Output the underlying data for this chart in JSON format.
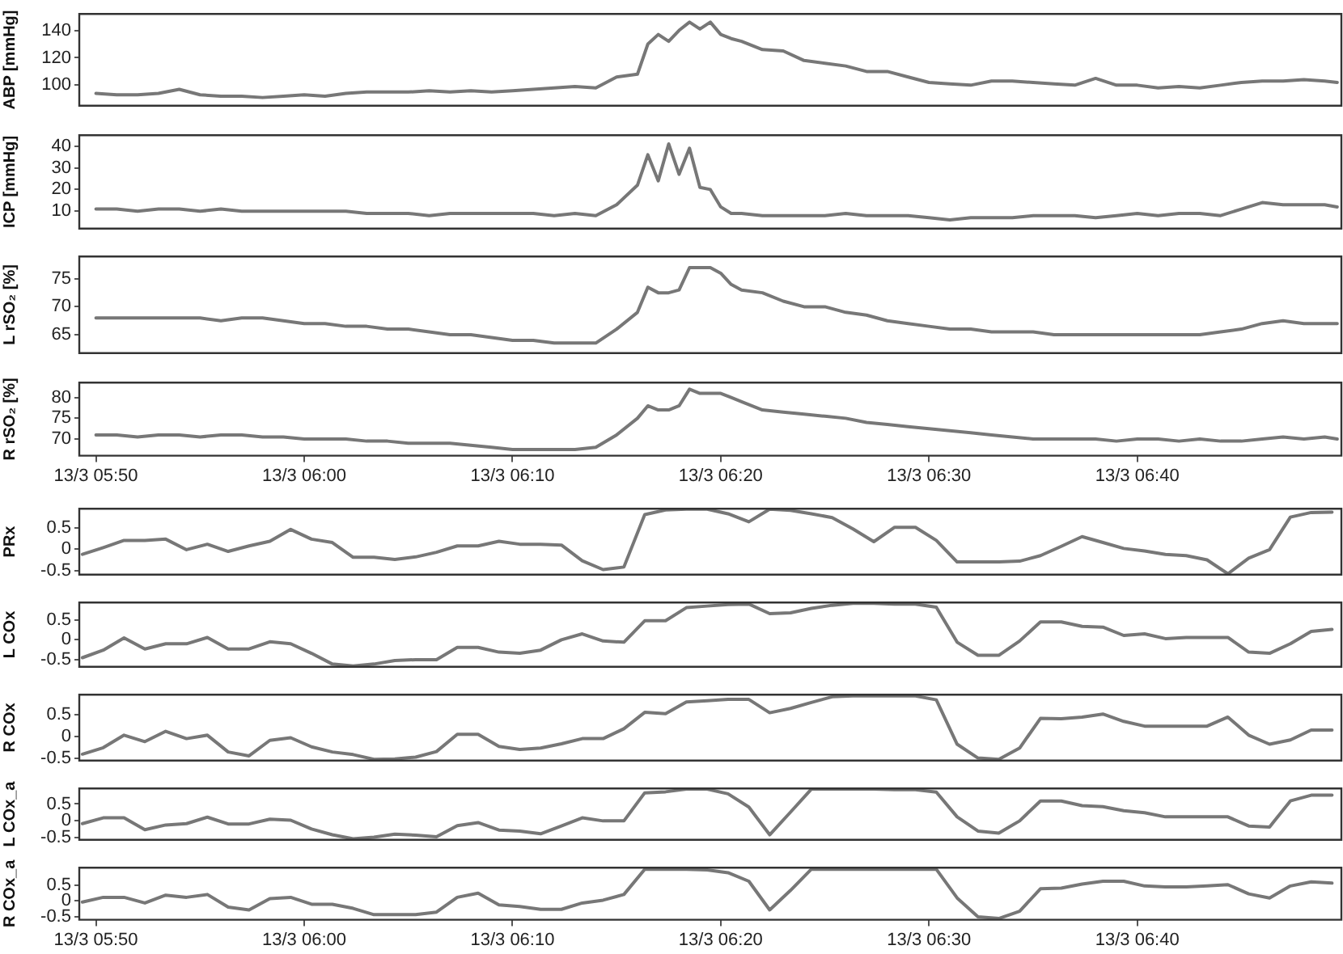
{
  "chart_data": [
    {
      "type": "line",
      "ylabel": "ABP [mmHg]",
      "color": "#777777",
      "tick_labels": "y",
      "grid": false,
      "x": [
        "--03-13T05:50",
        "--03-13T05:51",
        "--03-13T05:52",
        "--03-13T05:53",
        "--03-13T05:54",
        "--03-13T05:55",
        "--03-13T05:56",
        "--03-13T05:57",
        "--03-13T05:58",
        "--03-13T05:59",
        "--03-13T06:00",
        "--03-13T06:01",
        "--03-13T06:02",
        "--03-13T06:03",
        "--03-13T06:04",
        "--03-13T06:05",
        "--03-13T06:06",
        "--03-13T06:07",
        "--03-13T06:08",
        "--03-13T06:09",
        "--03-13T06:10",
        "--03-13T06:11",
        "--03-13T06:12",
        "--03-13T06:13",
        "--03-13T06:14",
        "--03-13T06:15",
        "--03-13T06:16",
        "--03-13T06:16:30",
        "--03-13T06:17",
        "--03-13T06:17:30",
        "--03-13T06:18",
        "--03-13T06:18:30",
        "--03-13T06:19",
        "--03-13T06:19:30",
        "--03-13T06:20",
        "--03-13T06:20:30",
        "--03-13T06:21",
        "--03-13T06:22",
        "--03-13T06:23",
        "--03-13T06:24",
        "--03-13T06:25",
        "--03-13T06:26",
        "--03-13T06:27",
        "--03-13T06:28",
        "--03-13T06:29",
        "--03-13T06:30",
        "--03-13T06:31",
        "--03-13T06:32",
        "--03-13T06:33",
        "--03-13T06:34",
        "--03-13T06:35",
        "--03-13T06:36",
        "--03-13T06:37",
        "--03-13T06:38",
        "--03-13T06:39",
        "--03-13T06:40",
        "--03-13T06:41",
        "--03-13T06:42",
        "--03-13T06:43",
        "--03-13T06:44",
        "--03-13T06:45",
        "--03-13T06:46",
        "--03-13T06:47",
        "--03-13T06:48",
        "--03-13T06:49",
        "--03-13T06:49:36"
      ],
      "values": [
        94,
        93,
        93,
        94,
        97,
        93,
        92,
        92,
        91,
        92,
        93,
        92,
        94,
        95,
        95,
        95,
        96,
        95,
        96,
        95,
        96,
        97,
        98,
        99,
        98,
        106,
        108,
        130,
        137,
        132,
        140,
        146,
        141,
        146,
        137,
        134,
        132,
        126,
        125,
        118,
        116,
        114,
        110,
        110,
        106,
        102,
        101,
        100,
        103,
        103,
        102,
        101,
        100,
        105,
        100,
        100,
        98,
        99,
        98,
        100,
        102,
        103,
        103,
        104,
        103,
        102
      ],
      "xlim": [
        "--03-13T05:49:12",
        "--03-13T06:49:48"
      ],
      "ylim": [
        85,
        152
      ],
      "yticks": [
        100,
        120,
        140
      ]
    },
    {
      "type": "line",
      "ylabel": "ICP [mmHg]",
      "color": "#777777",
      "tick_labels": "y",
      "grid": false,
      "x": [
        "--03-13T05:50",
        "--03-13T05:51",
        "--03-13T05:52",
        "--03-13T05:53",
        "--03-13T05:54",
        "--03-13T05:55",
        "--03-13T05:56",
        "--03-13T05:57",
        "--03-13T05:58",
        "--03-13T05:59",
        "--03-13T06:00",
        "--03-13T06:01",
        "--03-13T06:02",
        "--03-13T06:03",
        "--03-13T06:04",
        "--03-13T06:05",
        "--03-13T06:06",
        "--03-13T06:07",
        "--03-13T06:08",
        "--03-13T06:09",
        "--03-13T06:10",
        "--03-13T06:11",
        "--03-13T06:12",
        "--03-13T06:13",
        "--03-13T06:14",
        "--03-13T06:15",
        "--03-13T06:16",
        "--03-13T06:16:30",
        "--03-13T06:17",
        "--03-13T06:17:30",
        "--03-13T06:18",
        "--03-13T06:18:30",
        "--03-13T06:19",
        "--03-13T06:19:30",
        "--03-13T06:20",
        "--03-13T06:20:30",
        "--03-13T06:21",
        "--03-13T06:22",
        "--03-13T06:23",
        "--03-13T06:24",
        "--03-13T06:25",
        "--03-13T06:26",
        "--03-13T06:27",
        "--03-13T06:28",
        "--03-13T06:29",
        "--03-13T06:30",
        "--03-13T06:31",
        "--03-13T06:32",
        "--03-13T06:33",
        "--03-13T06:34",
        "--03-13T06:35",
        "--03-13T06:36",
        "--03-13T06:37",
        "--03-13T06:38",
        "--03-13T06:39",
        "--03-13T06:40",
        "--03-13T06:41",
        "--03-13T06:42",
        "--03-13T06:43",
        "--03-13T06:44",
        "--03-13T06:45",
        "--03-13T06:46",
        "--03-13T06:47",
        "--03-13T06:48",
        "--03-13T06:49",
        "--03-13T06:49:36"
      ],
      "values": [
        11,
        11,
        10,
        11,
        11,
        10,
        11,
        10,
        10,
        10,
        10,
        10,
        10,
        9,
        9,
        9,
        8,
        9,
        9,
        9,
        9,
        9,
        8,
        9,
        8,
        13,
        22,
        36,
        24,
        41,
        27,
        39,
        21,
        20,
        12,
        9,
        9,
        8,
        8,
        8,
        8,
        9,
        8,
        8,
        8,
        7,
        6,
        7,
        7,
        7,
        8,
        8,
        8,
        7,
        8,
        9,
        8,
        9,
        9,
        8,
        11,
        14,
        13,
        13,
        13,
        12
      ],
      "xlim": [
        "--03-13T05:49:12",
        "--03-13T06:49:48"
      ],
      "ylim": [
        2,
        45
      ],
      "yticks": [
        10,
        20,
        30,
        40
      ]
    },
    {
      "type": "line",
      "ylabel": "L rSO₂ [%]",
      "color": "#777777",
      "tick_labels": "y",
      "grid": false,
      "x": [
        "--03-13T05:50",
        "--03-13T05:51",
        "--03-13T05:52",
        "--03-13T05:53",
        "--03-13T05:54",
        "--03-13T05:55",
        "--03-13T05:56",
        "--03-13T05:57",
        "--03-13T05:58",
        "--03-13T05:59",
        "--03-13T06:00",
        "--03-13T06:01",
        "--03-13T06:02",
        "--03-13T06:03",
        "--03-13T06:04",
        "--03-13T06:05",
        "--03-13T06:06",
        "--03-13T06:07",
        "--03-13T06:08",
        "--03-13T06:09",
        "--03-13T06:10",
        "--03-13T06:11",
        "--03-13T06:12",
        "--03-13T06:13",
        "--03-13T06:14",
        "--03-13T06:15",
        "--03-13T06:16",
        "--03-13T06:16:30",
        "--03-13T06:17",
        "--03-13T06:17:30",
        "--03-13T06:18",
        "--03-13T06:18:30",
        "--03-13T06:19",
        "--03-13T06:19:30",
        "--03-13T06:20",
        "--03-13T06:20:30",
        "--03-13T06:21",
        "--03-13T06:22",
        "--03-13T06:23",
        "--03-13T06:24",
        "--03-13T06:25",
        "--03-13T06:26",
        "--03-13T06:27",
        "--03-13T06:28",
        "--03-13T06:29",
        "--03-13T06:30",
        "--03-13T06:31",
        "--03-13T06:32",
        "--03-13T06:33",
        "--03-13T06:34",
        "--03-13T06:35",
        "--03-13T06:36",
        "--03-13T06:37",
        "--03-13T06:38",
        "--03-13T06:39",
        "--03-13T06:40",
        "--03-13T06:41",
        "--03-13T06:42",
        "--03-13T06:43",
        "--03-13T06:44",
        "--03-13T06:45",
        "--03-13T06:46",
        "--03-13T06:47",
        "--03-13T06:48",
        "--03-13T06:49",
        "--03-13T06:49:36"
      ],
      "values": [
        68,
        68,
        68,
        68,
        68,
        68,
        67.5,
        68,
        68,
        67.5,
        67,
        67,
        66.5,
        66.5,
        66,
        66,
        65.5,
        65,
        65,
        64.5,
        64,
        64,
        63.5,
        63.5,
        63.5,
        66,
        69,
        73.5,
        72.5,
        72.5,
        73,
        77,
        77,
        77,
        76,
        74,
        73,
        72.5,
        71,
        70,
        70,
        69,
        68.5,
        67.5,
        67,
        66.5,
        66,
        66,
        65.5,
        65.5,
        65.5,
        65,
        65,
        65,
        65,
        65,
        65,
        65,
        65,
        65.5,
        66,
        67,
        67.5,
        67,
        67,
        67
      ],
      "xlim": [
        "--03-13T05:49:12",
        "--03-13T06:49:48"
      ],
      "ylim": [
        61.7,
        79
      ],
      "yticks": [
        65,
        70,
        75
      ]
    },
    {
      "type": "line",
      "ylabel": "R rSO₂ [%]",
      "color": "#777777",
      "grid": false,
      "x": [
        "--03-13T05:50",
        "--03-13T05:51",
        "--03-13T05:52",
        "--03-13T05:53",
        "--03-13T05:54",
        "--03-13T05:55",
        "--03-13T05:56",
        "--03-13T05:57",
        "--03-13T05:58",
        "--03-13T05:59",
        "--03-13T06:00",
        "--03-13T06:01",
        "--03-13T06:02",
        "--03-13T06:03",
        "--03-13T06:04",
        "--03-13T06:05",
        "--03-13T06:06",
        "--03-13T06:07",
        "--03-13T06:08",
        "--03-13T06:09",
        "--03-13T06:10",
        "--03-13T06:11",
        "--03-13T06:12",
        "--03-13T06:13",
        "--03-13T06:14",
        "--03-13T06:15",
        "--03-13T06:16",
        "--03-13T06:16:30",
        "--03-13T06:17",
        "--03-13T06:17:30",
        "--03-13T06:18",
        "--03-13T06:18:30",
        "--03-13T06:19",
        "--03-13T06:19:30",
        "--03-13T06:20",
        "--03-13T06:20:30",
        "--03-13T06:21",
        "--03-13T06:22",
        "--03-13T06:23",
        "--03-13T06:24",
        "--03-13T06:25",
        "--03-13T06:26",
        "--03-13T06:27",
        "--03-13T06:28",
        "--03-13T06:29",
        "--03-13T06:30",
        "--03-13T06:31",
        "--03-13T06:32",
        "--03-13T06:33",
        "--03-13T06:34",
        "--03-13T06:35",
        "--03-13T06:36",
        "--03-13T06:37",
        "--03-13T06:38",
        "--03-13T06:39",
        "--03-13T06:40",
        "--03-13T06:41",
        "--03-13T06:42",
        "--03-13T06:43",
        "--03-13T06:44",
        "--03-13T06:45",
        "--03-13T06:46",
        "--03-13T06:47",
        "--03-13T06:48",
        "--03-13T06:49",
        "--03-13T06:49:36"
      ],
      "values": [
        71,
        71,
        70.5,
        71,
        71,
        70.5,
        71,
        71,
        70.5,
        70.5,
        70,
        70,
        70,
        69.5,
        69.5,
        69,
        69,
        69,
        68.5,
        68,
        67.5,
        67.5,
        67.5,
        67.5,
        68,
        71,
        75,
        78,
        77,
        77,
        78,
        82,
        81,
        81,
        81,
        80,
        79,
        77,
        76.5,
        76,
        75.5,
        75,
        74,
        73.5,
        73,
        72.5,
        72,
        71.5,
        71,
        70.5,
        70,
        70,
        70,
        70,
        69.5,
        70,
        70,
        69.5,
        70,
        69.5,
        69.5,
        70,
        70.5,
        70,
        70.5,
        70
      ],
      "xlim": [
        "--03-13T05:49:12",
        "--03-13T06:49:48"
      ],
      "ylim": [
        66,
        83.6
      ],
      "yticks": [
        70,
        75,
        80
      ],
      "xticks": [
        {
          "value": "--03-13T05:50",
          "label": "13/3 05:50"
        },
        {
          "value": "--03-13T06:00",
          "label": "13/3 06:00"
        },
        {
          "value": "--03-13T06:10",
          "label": "13/3 06:10"
        },
        {
          "value": "--03-13T06:20",
          "label": "13/3 06:20"
        },
        {
          "value": "--03-13T06:30",
          "label": "13/3 06:30"
        },
        {
          "value": "--03-13T06:40",
          "label": "13/3 06:40"
        }
      ]
    },
    {
      "type": "line",
      "ylabel": "PRx",
      "color": "#777777",
      "tick_labels": "y",
      "grid": false,
      "x": [
        "--03-13T05:49:21",
        "--03-13T05:50:21",
        "--03-13T05:51:21",
        "--03-13T05:52:21",
        "--03-13T05:53:21",
        "--03-13T05:54:21",
        "--03-13T05:55:21",
        "--03-13T05:56:21",
        "--03-13T05:57:21",
        "--03-13T05:58:21",
        "--03-13T05:59:21",
        "--03-13T06:00:21",
        "--03-13T06:01:21",
        "--03-13T06:02:21",
        "--03-13T06:03:21",
        "--03-13T06:04:21",
        "--03-13T06:05:21",
        "--03-13T06:06:21",
        "--03-13T06:07:21",
        "--03-13T06:08:21",
        "--03-13T06:09:21",
        "--03-13T06:10:21",
        "--03-13T06:11:21",
        "--03-13T06:12:21",
        "--03-13T06:13:21",
        "--03-13T06:14:21",
        "--03-13T06:15:21",
        "--03-13T06:16:21",
        "--03-13T06:17:21",
        "--03-13T06:18:21",
        "--03-13T06:19:21",
        "--03-13T06:20:21",
        "--03-13T06:21:21",
        "--03-13T06:22:21",
        "--03-13T06:23:21",
        "--03-13T06:24:21",
        "--03-13T06:25:21",
        "--03-13T06:26:21",
        "--03-13T06:27:21",
        "--03-13T06:28:21",
        "--03-13T06:29:21",
        "--03-13T06:30:21",
        "--03-13T06:31:21",
        "--03-13T06:32:21",
        "--03-13T06:33:21",
        "--03-13T06:34:21",
        "--03-13T06:35:21",
        "--03-13T06:36:21",
        "--03-13T06:37:21",
        "--03-13T06:38:21",
        "--03-13T06:39:21",
        "--03-13T06:40:21",
        "--03-13T06:41:21",
        "--03-13T06:42:21",
        "--03-13T06:43:21",
        "--03-13T06:44:21",
        "--03-13T06:45:21",
        "--03-13T06:46:21",
        "--03-13T06:47:21",
        "--03-13T06:48:21",
        "--03-13T06:49:21"
      ],
      "values": [
        -0.12,
        0.04,
        0.21,
        0.21,
        0.24,
        -0.01,
        0.12,
        -0.05,
        0.08,
        0.19,
        0.47,
        0.24,
        0.16,
        -0.19,
        -0.19,
        -0.24,
        -0.18,
        -0.07,
        0.08,
        0.08,
        0.19,
        0.12,
        0.12,
        0.1,
        -0.27,
        -0.48,
        -0.42,
        0.82,
        0.93,
        0.95,
        0.95,
        0.84,
        0.65,
        0.95,
        0.92,
        0.84,
        0.75,
        0.48,
        0.18,
        0.52,
        0.52,
        0.21,
        -0.3,
        -0.3,
        -0.3,
        -0.28,
        -0.15,
        0.07,
        0.3,
        0.16,
        0.02,
        -0.04,
        -0.12,
        -0.15,
        -0.25,
        -0.58,
        -0.21,
        -0.01,
        0.76,
        0.87,
        0.88
      ],
      "xlim": [
        "--03-13T05:49:12",
        "--03-13T06:49:48"
      ],
      "ylim": [
        -0.6,
        0.96
      ],
      "yticks": [
        -0.5,
        0,
        0.5
      ]
    },
    {
      "type": "line",
      "ylabel": "L COx",
      "color": "#777777",
      "tick_labels": "y",
      "grid": false,
      "x": [
        "--03-13T05:49:21",
        "--03-13T05:50:21",
        "--03-13T05:51:21",
        "--03-13T05:52:21",
        "--03-13T05:53:21",
        "--03-13T05:54:21",
        "--03-13T05:55:21",
        "--03-13T05:56:21",
        "--03-13T05:57:21",
        "--03-13T05:58:21",
        "--03-13T05:59:21",
        "--03-13T06:00:21",
        "--03-13T06:01:21",
        "--03-13T06:02:21",
        "--03-13T06:03:21",
        "--03-13T06:04:21",
        "--03-13T06:05:21",
        "--03-13T06:06:21",
        "--03-13T06:07:21",
        "--03-13T06:08:21",
        "--03-13T06:09:21",
        "--03-13T06:10:21",
        "--03-13T06:11:21",
        "--03-13T06:12:21",
        "--03-13T06:13:21",
        "--03-13T06:14:21",
        "--03-13T06:15:21",
        "--03-13T06:16:21",
        "--03-13T06:17:21",
        "--03-13T06:18:21",
        "--03-13T06:19:21",
        "--03-13T06:20:21",
        "--03-13T06:21:21",
        "--03-13T06:22:21",
        "--03-13T06:23:21",
        "--03-13T06:24:21",
        "--03-13T06:25:21",
        "--03-13T06:26:21",
        "--03-13T06:27:21",
        "--03-13T06:28:21",
        "--03-13T06:29:21",
        "--03-13T06:30:21",
        "--03-13T06:31:21",
        "--03-13T06:32:21",
        "--03-13T06:33:21",
        "--03-13T06:34:21",
        "--03-13T06:35:21",
        "--03-13T06:36:21",
        "--03-13T06:37:21",
        "--03-13T06:38:21",
        "--03-13T06:39:21",
        "--03-13T06:40:21",
        "--03-13T06:41:21",
        "--03-13T06:42:21",
        "--03-13T06:43:21",
        "--03-13T06:44:21",
        "--03-13T06:45:21",
        "--03-13T06:46:21",
        "--03-13T06:47:21",
        "--03-13T06:48:21",
        "--03-13T06:49:21"
      ],
      "values": [
        -0.45,
        -0.26,
        0.05,
        -0.23,
        -0.1,
        -0.1,
        0.06,
        -0.23,
        -0.23,
        -0.05,
        -0.1,
        -0.34,
        -0.61,
        -0.66,
        -0.61,
        -0.52,
        -0.5,
        -0.5,
        -0.19,
        -0.19,
        -0.31,
        -0.34,
        -0.26,
        0,
        0.15,
        -0.03,
        -0.06,
        0.48,
        0.48,
        0.81,
        0.85,
        0.89,
        0.9,
        0.66,
        0.68,
        0.79,
        0.87,
        0.92,
        0.92,
        0.9,
        0.9,
        0.82,
        -0.06,
        -0.39,
        -0.39,
        -0.03,
        0.45,
        0.45,
        0.34,
        0.32,
        0.11,
        0.15,
        0.03,
        0.06,
        0.06,
        0.06,
        -0.31,
        -0.34,
        -0.1,
        0.21,
        0.26
      ],
      "xlim": [
        "--03-13T05:49:12",
        "--03-13T06:49:48"
      ],
      "ylim": [
        -0.68,
        0.94
      ],
      "yticks": [
        -0.5,
        0,
        0.5
      ]
    },
    {
      "type": "line",
      "ylabel": "R COx",
      "color": "#777777",
      "tick_labels": "y",
      "grid": false,
      "x": [
        "--03-13T05:49:21",
        "--03-13T05:50:21",
        "--03-13T05:51:21",
        "--03-13T05:52:21",
        "--03-13T05:53:21",
        "--03-13T05:54:21",
        "--03-13T05:55:21",
        "--03-13T05:56:21",
        "--03-13T05:57:21",
        "--03-13T05:58:21",
        "--03-13T05:59:21",
        "--03-13T06:00:21",
        "--03-13T06:01:21",
        "--03-13T06:02:21",
        "--03-13T06:03:21",
        "--03-13T06:04:21",
        "--03-13T06:05:21",
        "--03-13T06:06:21",
        "--03-13T06:07:21",
        "--03-13T06:08:21",
        "--03-13T06:09:21",
        "--03-13T06:10:21",
        "--03-13T06:11:21",
        "--03-13T06:12:21",
        "--03-13T06:13:21",
        "--03-13T06:14:21",
        "--03-13T06:15:21",
        "--03-13T06:16:21",
        "--03-13T06:17:21",
        "--03-13T06:18:21",
        "--03-13T06:19:21",
        "--03-13T06:20:21",
        "--03-13T06:21:21",
        "--03-13T06:22:21",
        "--03-13T06:23:21",
        "--03-13T06:24:21",
        "--03-13T06:25:21",
        "--03-13T06:26:21",
        "--03-13T06:27:21",
        "--03-13T06:28:21",
        "--03-13T06:29:21",
        "--03-13T06:30:21",
        "--03-13T06:31:21",
        "--03-13T06:32:21",
        "--03-13T06:33:21",
        "--03-13T06:34:21",
        "--03-13T06:35:21",
        "--03-13T06:36:21",
        "--03-13T06:37:21",
        "--03-13T06:38:21",
        "--03-13T06:39:21",
        "--03-13T06:40:21",
        "--03-13T06:41:21",
        "--03-13T06:42:21",
        "--03-13T06:43:21",
        "--03-13T06:44:21",
        "--03-13T06:45:21",
        "--03-13T06:46:21",
        "--03-13T06:47:21",
        "--03-13T06:48:21",
        "--03-13T06:49:21"
      ],
      "values": [
        -0.41,
        -0.26,
        0.03,
        -0.12,
        0.12,
        -0.05,
        0.03,
        -0.36,
        -0.45,
        -0.09,
        -0.03,
        -0.24,
        -0.36,
        -0.42,
        -0.53,
        -0.52,
        -0.48,
        -0.35,
        0.05,
        0.05,
        -0.23,
        -0.3,
        -0.27,
        -0.17,
        -0.05,
        -0.05,
        0.18,
        0.56,
        0.53,
        0.8,
        0.83,
        0.86,
        0.86,
        0.55,
        0.65,
        0.79,
        0.92,
        0.94,
        0.94,
        0.94,
        0.94,
        0.85,
        -0.18,
        -0.5,
        -0.53,
        -0.27,
        0.42,
        0.41,
        0.45,
        0.52,
        0.35,
        0.24,
        0.24,
        0.24,
        0.24,
        0.45,
        0.03,
        -0.18,
        -0.08,
        0.15,
        0.15
      ],
      "xlim": [
        "--03-13T05:49:12",
        "--03-13T06:49:48"
      ],
      "ylim": [
        -0.56,
        0.97
      ],
      "yticks": [
        -0.5,
        0,
        0.5
      ]
    },
    {
      "type": "line",
      "ylabel": "L COx_a",
      "color": "#777777",
      "tick_labels": "y",
      "grid": false,
      "x": [
        "--03-13T05:49:21",
        "--03-13T05:50:21",
        "--03-13T05:51:21",
        "--03-13T05:52:21",
        "--03-13T05:53:21",
        "--03-13T05:54:21",
        "--03-13T05:55:21",
        "--03-13T05:56:21",
        "--03-13T05:57:21",
        "--03-13T05:58:21",
        "--03-13T05:59:21",
        "--03-13T06:00:21",
        "--03-13T06:01:21",
        "--03-13T06:02:21",
        "--03-13T06:03:21",
        "--03-13T06:04:21",
        "--03-13T06:05:21",
        "--03-13T06:06:21",
        "--03-13T06:07:21",
        "--03-13T06:08:21",
        "--03-13T06:09:21",
        "--03-13T06:10:21",
        "--03-13T06:11:21",
        "--03-13T06:12:21",
        "--03-13T06:13:21",
        "--03-13T06:14:21",
        "--03-13T06:15:21",
        "--03-13T06:16:21",
        "--03-13T06:17:21",
        "--03-13T06:18:21",
        "--03-13T06:19:21",
        "--03-13T06:20:21",
        "--03-13T06:21:21",
        "--03-13T06:22:21",
        "--03-13T06:23:21",
        "--03-13T06:24:21",
        "--03-13T06:25:21",
        "--03-13T06:26:21",
        "--03-13T06:27:21",
        "--03-13T06:28:21",
        "--03-13T06:29:21",
        "--03-13T06:30:21",
        "--03-13T06:31:21",
        "--03-13T06:32:21",
        "--03-13T06:33:21",
        "--03-13T06:34:21",
        "--03-13T06:35:21",
        "--03-13T06:36:21",
        "--03-13T06:37:21",
        "--03-13T06:38:21",
        "--03-13T06:39:21",
        "--03-13T06:40:21",
        "--03-13T06:41:21",
        "--03-13T06:42:21",
        "--03-13T06:43:21",
        "--03-13T06:44:21",
        "--03-13T06:45:21",
        "--03-13T06:46:21",
        "--03-13T06:47:21",
        "--03-13T06:48:21",
        "--03-13T06:49:21"
      ],
      "values": [
        -0.08,
        0.09,
        0.09,
        -0.26,
        -0.12,
        -0.08,
        0.11,
        -0.09,
        -0.09,
        0.05,
        0.02,
        -0.24,
        -0.41,
        -0.53,
        -0.48,
        -0.39,
        -0.42,
        -0.47,
        -0.14,
        -0.05,
        -0.27,
        -0.3,
        -0.38,
        -0.15,
        0.09,
        0,
        0,
        0.83,
        0.86,
        0.94,
        0.94,
        0.8,
        0.41,
        -0.41,
        0.26,
        0.94,
        0.94,
        0.94,
        0.94,
        0.92,
        0.92,
        0.85,
        0.12,
        -0.3,
        -0.36,
        0,
        0.59,
        0.59,
        0.45,
        0.42,
        0.3,
        0.24,
        0.12,
        0.12,
        0.12,
        0.12,
        -0.15,
        -0.18,
        0.59,
        0.76,
        0.76
      ],
      "xlim": [
        "--03-13T05:49:12",
        "--03-13T06:49:48"
      ],
      "ylim": [
        -0.56,
        0.96
      ],
      "yticks": [
        -0.5,
        0,
        0.5
      ]
    },
    {
      "type": "line",
      "ylabel": "R COx_a",
      "color": "#777777",
      "grid": false,
      "x": [
        "--03-13T05:49:21",
        "--03-13T05:50:21",
        "--03-13T05:51:21",
        "--03-13T05:52:21",
        "--03-13T05:53:21",
        "--03-13T05:54:21",
        "--03-13T05:55:21",
        "--03-13T05:56:21",
        "--03-13T05:57:21",
        "--03-13T05:58:21",
        "--03-13T05:59:21",
        "--03-13T06:00:21",
        "--03-13T06:01:21",
        "--03-13T06:02:21",
        "--03-13T06:03:21",
        "--03-13T06:04:21",
        "--03-13T06:05:21",
        "--03-13T06:06:21",
        "--03-13T06:07:21",
        "--03-13T06:08:21",
        "--03-13T06:09:21",
        "--03-13T06:10:21",
        "--03-13T06:11:21",
        "--03-13T06:12:21",
        "--03-13T06:13:21",
        "--03-13T06:14:21",
        "--03-13T06:15:21",
        "--03-13T06:16:21",
        "--03-13T06:17:21",
        "--03-13T06:18:21",
        "--03-13T06:19:21",
        "--03-13T06:20:21",
        "--03-13T06:21:21",
        "--03-13T06:22:21",
        "--03-13T06:23:21",
        "--03-13T06:24:21",
        "--03-13T06:25:21",
        "--03-13T06:26:21",
        "--03-13T06:27:21",
        "--03-13T06:28:21",
        "--03-13T06:29:21",
        "--03-13T06:30:21",
        "--03-13T06:31:21",
        "--03-13T06:32:21",
        "--03-13T06:33:21",
        "--03-13T06:34:21",
        "--03-13T06:35:21",
        "--03-13T06:36:21",
        "--03-13T06:37:21",
        "--03-13T06:38:21",
        "--03-13T06:39:21",
        "--03-13T06:40:21",
        "--03-13T06:41:21",
        "--03-13T06:42:21",
        "--03-13T06:43:21",
        "--03-13T06:44:21",
        "--03-13T06:45:21",
        "--03-13T06:46:21",
        "--03-13T06:47:21",
        "--03-13T06:48:21",
        "--03-13T06:49:21"
      ],
      "values": [
        -0.04,
        0.11,
        0.11,
        -0.07,
        0.18,
        0.11,
        0.2,
        -0.2,
        -0.29,
        0.07,
        0.11,
        -0.11,
        -0.11,
        -0.24,
        -0.44,
        -0.44,
        -0.44,
        -0.36,
        0.11,
        0.24,
        -0.13,
        -0.18,
        -0.27,
        -0.27,
        -0.07,
        0.02,
        0.2,
        1,
        1,
        1,
        0.98,
        0.89,
        0.62,
        -0.29,
        0.33,
        1,
        1,
        1,
        1,
        1,
        1,
        1,
        0.09,
        -0.51,
        -0.56,
        -0.33,
        0.38,
        0.4,
        0.53,
        0.62,
        0.62,
        0.47,
        0.44,
        0.44,
        0.47,
        0.51,
        0.22,
        0.09,
        0.47,
        0.6,
        0.56
      ],
      "xlim": [
        "--03-13T05:49:12",
        "--03-13T06:49:48"
      ],
      "ylim": [
        -0.6,
        1.05
      ],
      "yticks": [
        -0.5,
        0,
        0.5
      ],
      "xticks": [
        {
          "value": "--03-13T05:50",
          "label": "13/3 05:50"
        },
        {
          "value": "--03-13T06:00",
          "label": "13/3 06:00"
        },
        {
          "value": "--03-13T06:10",
          "label": "13/3 06:10"
        },
        {
          "value": "--03-13T06:20",
          "label": "13/3 06:20"
        },
        {
          "value": "--03-13T06:30",
          "label": "13/3 06:30"
        },
        {
          "value": "--03-13T06:40",
          "label": "13/3 06:40"
        }
      ]
    }
  ]
}
